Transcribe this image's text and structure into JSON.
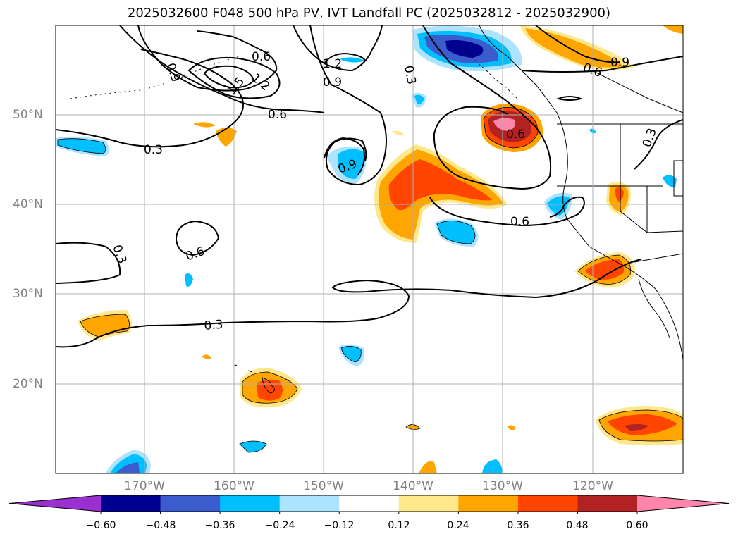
{
  "title": "2025032600 F048 500 hPa PV, IVT Landfall PC (2025032812 - 2025032900)",
  "lon_labels": [
    "170°W",
    "160°W",
    "150°W",
    "140°W",
    "130°W",
    "120°W"
  ],
  "lat_labels": [
    "50°N",
    "40°N",
    "30°N",
    "20°N"
  ],
  "colorbar": {
    "tick_labels": [
      "−0.60",
      "−0.48",
      "−0.36",
      "−0.24",
      "−0.12",
      "0.12",
      "0.24",
      "0.36",
      "0.48",
      "0.60"
    ],
    "colors": [
      "#9b30d0",
      "#000090",
      "#3a5ccc",
      "#00bfff",
      "#ade3ff",
      "#ffffff",
      "#ffe88c",
      "#ffa500",
      "#ff4500",
      "#b22222",
      "#ff85aa"
    ]
  },
  "contour_labels": [
    "0.9",
    "0.6",
    "1.2",
    "1.5",
    "1.2",
    "0.9",
    "0.3",
    "0.6",
    "0.9",
    "0.6",
    "0.3",
    "0.9",
    "0.6",
    "0.3",
    "0.6",
    "0.6",
    "0.3",
    "0.3"
  ]
}
